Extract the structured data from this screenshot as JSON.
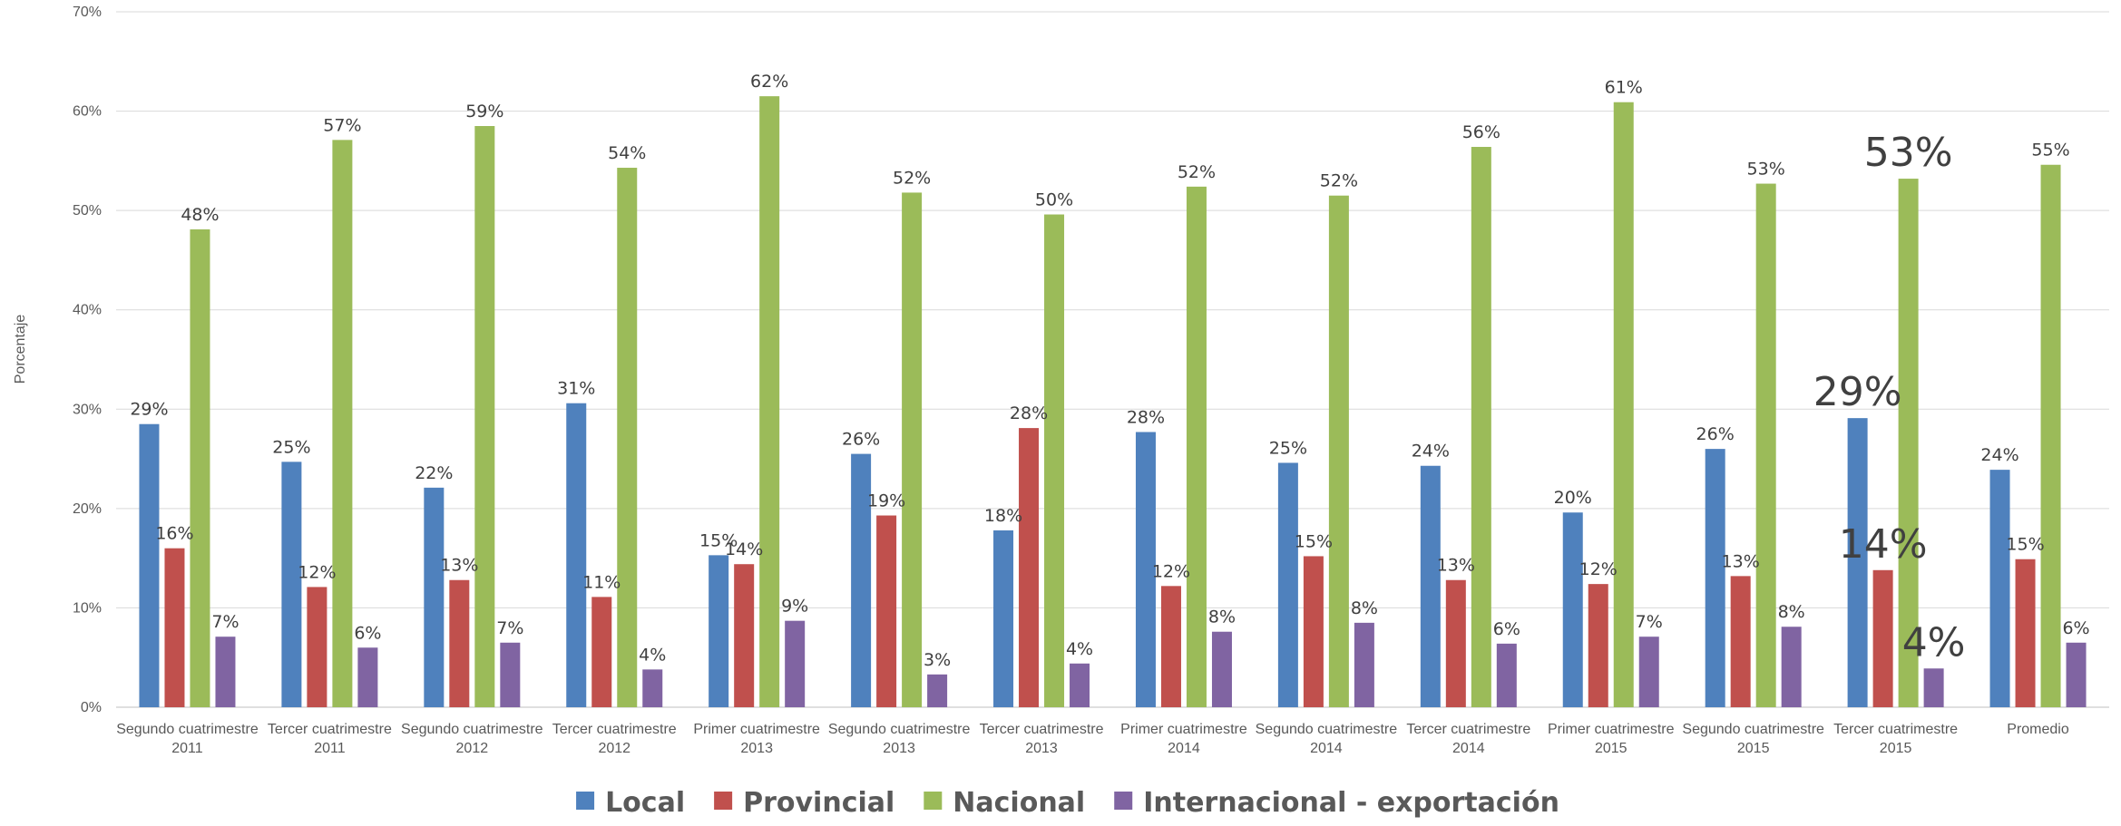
{
  "chart_data": {
    "type": "bar",
    "ylabel": "Porcentaje",
    "ylim": [
      0,
      70
    ],
    "yticks": [
      "0%",
      "10%",
      "20%",
      "30%",
      "40%",
      "50%",
      "60%",
      "70%"
    ],
    "grid": true,
    "legend_position": "bottom",
    "categories": [
      [
        "Segundo cuatrimestre",
        "2011"
      ],
      [
        "Tercer cuatrimestre",
        "2011"
      ],
      [
        "Segundo cuatrimestre",
        "2012"
      ],
      [
        "Tercer cuatrimestre",
        "2012"
      ],
      [
        "Primer cuatrimestre",
        "2013"
      ],
      [
        "Segundo cuatrimestre",
        "2013"
      ],
      [
        "Tercer cuatrimestre",
        "2013"
      ],
      [
        "Primer cuatrimestre",
        "2014"
      ],
      [
        "Segundo cuatrimestre",
        "2014"
      ],
      [
        "Tercer cuatrimestre",
        "2014"
      ],
      [
        "Primer cuatrimestre",
        "2015"
      ],
      [
        "Segundo cuatrimestre",
        "2015"
      ],
      [
        "Tercer cuatrimestre",
        "2015"
      ],
      [
        "Promedio"
      ]
    ],
    "series": [
      {
        "name": "Local",
        "color": "#4F81BD",
        "values": [
          28.5,
          24.7,
          22.1,
          30.6,
          15.3,
          25.5,
          17.8,
          27.7,
          24.6,
          24.3,
          19.6,
          26.0,
          29.1,
          23.9
        ],
        "labels": [
          "29%",
          "25%",
          "22%",
          "31%",
          "15%",
          "26%",
          "18%",
          "28%",
          "25%",
          "24%",
          "20%",
          "26%",
          "29%",
          "24%"
        ]
      },
      {
        "name": "Provincial",
        "color": "#C0504D",
        "values": [
          16.0,
          12.1,
          12.8,
          11.1,
          14.4,
          19.3,
          28.1,
          12.2,
          15.2,
          12.8,
          12.4,
          13.2,
          13.8,
          14.9
        ],
        "labels": [
          "16%",
          "12%",
          "13%",
          "11%",
          "14%",
          "19%",
          "28%",
          "12%",
          "15%",
          "13%",
          "12%",
          "13%",
          "14%",
          "15%"
        ]
      },
      {
        "name": "Nacional",
        "color": "#9BBB59",
        "values": [
          48.1,
          57.1,
          58.5,
          54.3,
          61.5,
          51.8,
          49.6,
          52.4,
          51.5,
          56.4,
          60.9,
          52.7,
          53.2,
          54.6
        ],
        "labels": [
          "48%",
          "57%",
          "59%",
          "54%",
          "62%",
          "52%",
          "50%",
          "52%",
          "52%",
          "56%",
          "61%",
          "53%",
          "53%",
          "55%"
        ]
      },
      {
        "name": "Internacional - exportación",
        "color": "#8064A2",
        "values": [
          7.1,
          6.0,
          6.5,
          3.8,
          8.7,
          3.3,
          4.4,
          7.6,
          8.5,
          6.4,
          7.1,
          8.1,
          3.9,
          6.5
        ],
        "labels": [
          "7%",
          "6%",
          "7%",
          "4%",
          "9%",
          "3%",
          "4%",
          "8%",
          "8%",
          "6%",
          "7%",
          "8%",
          "4%",
          "6%"
        ]
      }
    ],
    "emphasized_category_index": 12,
    "colors": {
      "grid": "#D9D9D9",
      "axis": "#BFBFBF"
    }
  }
}
